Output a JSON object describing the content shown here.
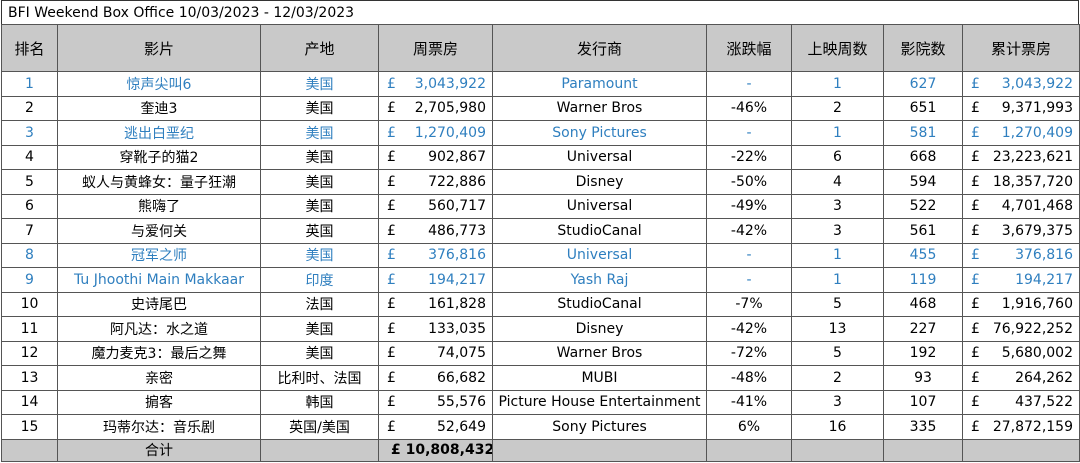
{
  "title": "BFI Weekend Box Office 10/03/2023 - 12/03/2023",
  "currency": "£",
  "accent_color": "#2f7fbf",
  "header_bg": "#c9c9c9",
  "columns": [
    "排名",
    "影片",
    "产地",
    "周票房",
    "发行商",
    "涨跌幅",
    "上映周数",
    "影院数",
    "累计票房"
  ],
  "rows": [
    {
      "rank": "1",
      "film": "惊声尖叫6",
      "origin": "美国",
      "weekend": "3,043,922",
      "distributor": "Paramount",
      "change": "-",
      "weeks": "1",
      "cinemas": "627",
      "total": "3,043,922",
      "highlight": true
    },
    {
      "rank": "2",
      "film": "奎迪3",
      "origin": "美国",
      "weekend": "2,705,980",
      "distributor": "Warner Bros",
      "change": "-46%",
      "weeks": "2",
      "cinemas": "651",
      "total": "9,371,993",
      "highlight": false
    },
    {
      "rank": "3",
      "film": "逃出白垩纪",
      "origin": "美国",
      "weekend": "1,270,409",
      "distributor": "Sony Pictures",
      "change": "-",
      "weeks": "1",
      "cinemas": "581",
      "total": "1,270,409",
      "highlight": true
    },
    {
      "rank": "4",
      "film": "穿靴子的猫2",
      "origin": "美国",
      "weekend": "902,867",
      "distributor": "Universal",
      "change": "-22%",
      "weeks": "6",
      "cinemas": "668",
      "total": "23,223,621",
      "highlight": false
    },
    {
      "rank": "5",
      "film": "蚁人与黄蜂女：量子狂潮",
      "origin": "美国",
      "weekend": "722,886",
      "distributor": "Disney",
      "change": "-50%",
      "weeks": "4",
      "cinemas": "594",
      "total": "18,357,720",
      "highlight": false
    },
    {
      "rank": "6",
      "film": "熊嗨了",
      "origin": "美国",
      "weekend": "560,717",
      "distributor": "Universal",
      "change": "-49%",
      "weeks": "3",
      "cinemas": "522",
      "total": "4,701,468",
      "highlight": false
    },
    {
      "rank": "7",
      "film": "与爱何关",
      "origin": "英国",
      "weekend": "486,773",
      "distributor": "StudioCanal",
      "change": "-42%",
      "weeks": "3",
      "cinemas": "561",
      "total": "3,679,375",
      "highlight": false
    },
    {
      "rank": "8",
      "film": "冠军之师",
      "origin": "美国",
      "weekend": "376,816",
      "distributor": "Universal",
      "change": "-",
      "weeks": "1",
      "cinemas": "455",
      "total": "376,816",
      "highlight": true
    },
    {
      "rank": "9",
      "film": "Tu Jhoothi Main Makkaar",
      "origin": "印度",
      "weekend": "194,217",
      "distributor": "Yash Raj",
      "change": "-",
      "weeks": "1",
      "cinemas": "119",
      "total": "194,217",
      "highlight": true
    },
    {
      "rank": "10",
      "film": "史诗尾巴",
      "origin": "法国",
      "weekend": "161,828",
      "distributor": "StudioCanal",
      "change": "-7%",
      "weeks": "5",
      "cinemas": "468",
      "total": "1,916,760",
      "highlight": false
    },
    {
      "rank": "11",
      "film": "阿凡达：水之道",
      "origin": "美国",
      "weekend": "133,035",
      "distributor": "Disney",
      "change": "-42%",
      "weeks": "13",
      "cinemas": "227",
      "total": "76,922,252",
      "highlight": false
    },
    {
      "rank": "12",
      "film": "魔力麦克3：最后之舞",
      "origin": "美国",
      "weekend": "74,075",
      "distributor": "Warner Bros",
      "change": "-72%",
      "weeks": "5",
      "cinemas": "192",
      "total": "5,680,002",
      "highlight": false
    },
    {
      "rank": "13",
      "film": "亲密",
      "origin": "比利时、法国",
      "weekend": "66,682",
      "distributor": "MUBI",
      "change": "-48%",
      "weeks": "2",
      "cinemas": "93",
      "total": "264,262",
      "highlight": false
    },
    {
      "rank": "14",
      "film": "掮客",
      "origin": "韩国",
      "weekend": "55,576",
      "distributor": "Picture House Entertainment",
      "change": "-41%",
      "weeks": "3",
      "cinemas": "107",
      "total": "437,522",
      "highlight": false
    },
    {
      "rank": "15",
      "film": "玛蒂尔达：音乐剧",
      "origin": "英国/美国",
      "weekend": "52,649",
      "distributor": "Sony Pictures",
      "change": "6%",
      "weeks": "16",
      "cinemas": "335",
      "total": "27,872,159",
      "highlight": false
    }
  ],
  "footer": {
    "label": "合计",
    "total": "£ 10,808,432"
  }
}
